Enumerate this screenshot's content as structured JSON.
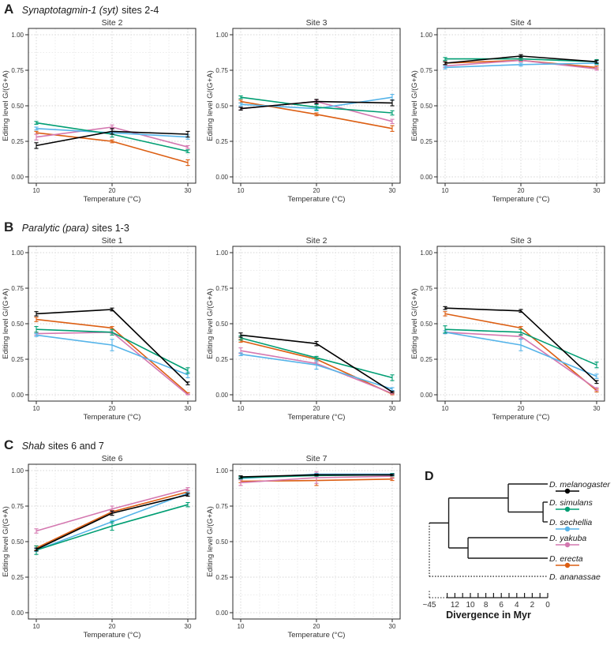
{
  "page": {
    "background": "#ffffff"
  },
  "palette": {
    "melanogaster": "#000000",
    "simulans": "#009E73",
    "sechellia": "#56B4E9",
    "yakuba": "#D478B0",
    "erecta": "#DC5E12",
    "grid_major": "#d4d4d4",
    "grid_minor": "#ebebeb",
    "panel_border": "#2b2b2b",
    "text": "#333333"
  },
  "sections": [
    {
      "label": "A",
      "gene_italic": "Synaptotagmin-1 (syt)",
      "suffix": "sites 2-4"
    },
    {
      "label": "B",
      "gene_italic": "Paralytic (para)",
      "suffix": "sites 1-3"
    },
    {
      "label": "C",
      "gene_italic": "Shab",
      "suffix": "sites 6 and 7"
    }
  ],
  "chart_defaults": {
    "type": "line",
    "x": [
      10,
      20,
      30
    ],
    "xtick_labels": [
      "10",
      "20",
      "30"
    ],
    "xlabel": "Temperature (°C)",
    "ylabel": "Editing level G/(G+A)",
    "ylim": [
      0,
      1
    ],
    "ytick_values": [
      0,
      0.25,
      0.5,
      0.75,
      1
    ],
    "ytick_labels": [
      "0.00",
      "0.25",
      "0.50",
      "0.75",
      "1.00"
    ],
    "grid": "dotted"
  },
  "chart_data": [
    {
      "type": "line",
      "section": "A",
      "title": "Site 2",
      "series": [
        {
          "name": "D. melanogaster",
          "color": "#000000",
          "values": [
            0.22,
            0.32,
            0.3
          ],
          "err": [
            0.02,
            0.02,
            0.02
          ]
        },
        {
          "name": "D. simulans",
          "color": "#009E73",
          "values": [
            0.38,
            0.3,
            0.18
          ],
          "err": [
            0.01,
            0.02,
            0.01
          ]
        },
        {
          "name": "D. sechellia",
          "color": "#56B4E9",
          "values": [
            0.34,
            0.31,
            0.28
          ],
          "err": [
            0.01,
            0.01,
            0.015
          ]
        },
        {
          "name": "D. yakuba",
          "color": "#D478B0",
          "values": [
            0.28,
            0.35,
            0.21
          ],
          "err": [
            0.02,
            0.015,
            0.01
          ]
        },
        {
          "name": "D. erecta",
          "color": "#DC5E12",
          "values": [
            0.31,
            0.25,
            0.1
          ],
          "err": [
            0.01,
            0.01,
            0.02
          ]
        }
      ]
    },
    {
      "type": "line",
      "section": "A",
      "title": "Site 3",
      "series": [
        {
          "name": "D. melanogaster",
          "color": "#000000",
          "values": [
            0.48,
            0.53,
            0.52
          ],
          "err": [
            0.01,
            0.015,
            0.02
          ]
        },
        {
          "name": "D. simulans",
          "color": "#009E73",
          "values": [
            0.56,
            0.49,
            0.45
          ],
          "err": [
            0.01,
            0.02,
            0.015
          ]
        },
        {
          "name": "D. sechellia",
          "color": "#56B4E9",
          "values": [
            0.51,
            0.48,
            0.56
          ],
          "err": [
            0.01,
            0.015,
            0.02
          ]
        },
        {
          "name": "D. yakuba",
          "color": "#D478B0",
          "values": [
            0.48,
            0.53,
            0.39
          ],
          "err": [
            0.01,
            0.01,
            0.015
          ]
        },
        {
          "name": "D. erecta",
          "color": "#DC5E12",
          "values": [
            0.53,
            0.44,
            0.34
          ],
          "err": [
            0.01,
            0.01,
            0.02
          ]
        }
      ]
    },
    {
      "type": "line",
      "section": "A",
      "title": "Site 4",
      "series": [
        {
          "name": "D. melanogaster",
          "color": "#000000",
          "values": [
            0.8,
            0.85,
            0.81
          ],
          "err": [
            0.01,
            0.01,
            0.01
          ]
        },
        {
          "name": "D. simulans",
          "color": "#009E73",
          "values": [
            0.83,
            0.83,
            0.81
          ],
          "err": [
            0.01,
            0.01,
            0.015
          ]
        },
        {
          "name": "D. sechellia",
          "color": "#56B4E9",
          "values": [
            0.77,
            0.79,
            0.8
          ],
          "err": [
            0.01,
            0.01,
            0.01
          ]
        },
        {
          "name": "D. yakuba",
          "color": "#D478B0",
          "values": [
            0.78,
            0.82,
            0.76
          ],
          "err": [
            0.01,
            0.01,
            0.01
          ]
        },
        {
          "name": "D. erecta",
          "color": "#DC5E12",
          "values": [
            0.8,
            0.82,
            0.77
          ],
          "err": [
            0.01,
            0.01,
            0.01
          ]
        }
      ]
    },
    {
      "type": "line",
      "section": "B",
      "title": "Site 1",
      "series": [
        {
          "name": "D. melanogaster",
          "color": "#000000",
          "values": [
            0.57,
            0.6,
            0.08
          ],
          "err": [
            0.015,
            0.01,
            0.01
          ]
        },
        {
          "name": "D. simulans",
          "color": "#009E73",
          "values": [
            0.46,
            0.44,
            0.17
          ],
          "err": [
            0.02,
            0.02,
            0.02
          ]
        },
        {
          "name": "D. sechellia",
          "color": "#56B4E9",
          "values": [
            0.42,
            0.35,
            0.14
          ],
          "err": [
            0.01,
            0.04,
            0.02
          ]
        },
        {
          "name": "D. yakuba",
          "color": "#D478B0",
          "values": [
            0.43,
            0.44,
            0.0
          ],
          "err": [
            0.01,
            0.01,
            0.005
          ]
        },
        {
          "name": "D. erecta",
          "color": "#DC5E12",
          "values": [
            0.53,
            0.47,
            0.01
          ],
          "err": [
            0.015,
            0.01,
            0.005
          ]
        }
      ]
    },
    {
      "type": "line",
      "section": "B",
      "title": "Site 2",
      "series": [
        {
          "name": "D. melanogaster",
          "color": "#000000",
          "values": [
            0.42,
            0.36,
            0.02
          ],
          "err": [
            0.015,
            0.015,
            0.005
          ]
        },
        {
          "name": "D. simulans",
          "color": "#009E73",
          "values": [
            0.4,
            0.26,
            0.12
          ],
          "err": [
            0.015,
            0.01,
            0.02
          ]
        },
        {
          "name": "D. sechellia",
          "color": "#56B4E9",
          "values": [
            0.285,
            0.21,
            0.04
          ],
          "err": [
            0.01,
            0.03,
            0.01
          ]
        },
        {
          "name": "D. yakuba",
          "color": "#D478B0",
          "values": [
            0.31,
            0.22,
            0.01
          ],
          "err": [
            0.02,
            0.01,
            0.005
          ]
        },
        {
          "name": "D. erecta",
          "color": "#DC5E12",
          "values": [
            0.38,
            0.25,
            0.005
          ],
          "err": [
            0.01,
            0.01,
            0.005
          ]
        }
      ]
    },
    {
      "type": "line",
      "section": "B",
      "title": "Site 3",
      "series": [
        {
          "name": "D. melanogaster",
          "color": "#000000",
          "values": [
            0.61,
            0.59,
            0.09
          ],
          "err": [
            0.01,
            0.01,
            0.01
          ]
        },
        {
          "name": "D. simulans",
          "color": "#009E73",
          "values": [
            0.46,
            0.44,
            0.21
          ],
          "err": [
            0.025,
            0.02,
            0.02
          ]
        },
        {
          "name": "D. sechellia",
          "color": "#56B4E9",
          "values": [
            0.44,
            0.35,
            0.13
          ],
          "err": [
            0.01,
            0.04,
            0.015
          ]
        },
        {
          "name": "D. yakuba",
          "color": "#D478B0",
          "values": [
            0.44,
            0.41,
            0.04
          ],
          "err": [
            0.01,
            0.015,
            0.01
          ]
        },
        {
          "name": "D. erecta",
          "color": "#DC5E12",
          "values": [
            0.57,
            0.47,
            0.03
          ],
          "err": [
            0.015,
            0.01,
            0.01
          ]
        }
      ]
    },
    {
      "type": "line",
      "section": "C",
      "title": "Site 6",
      "series": [
        {
          "name": "D. melanogaster",
          "color": "#000000",
          "values": [
            0.445,
            0.7,
            0.83
          ],
          "err": [
            0.01,
            0.015,
            0.01
          ]
        },
        {
          "name": "D. simulans",
          "color": "#009E73",
          "values": [
            0.44,
            0.61,
            0.76
          ],
          "err": [
            0.03,
            0.03,
            0.015
          ]
        },
        {
          "name": "D. sechellia",
          "color": "#56B4E9",
          "values": [
            0.44,
            0.64,
            0.84
          ],
          "err": [
            0.01,
            0.01,
            0.01
          ]
        },
        {
          "name": "D. yakuba",
          "color": "#D478B0",
          "values": [
            0.575,
            0.73,
            0.87
          ],
          "err": [
            0.015,
            0.02,
            0.01
          ]
        },
        {
          "name": "D. erecta",
          "color": "#DC5E12",
          "values": [
            0.455,
            0.71,
            0.85
          ],
          "err": [
            0.015,
            0.01,
            0.01
          ]
        }
      ]
    },
    {
      "type": "line",
      "section": "C",
      "title": "Site 7",
      "series": [
        {
          "name": "D. melanogaster",
          "color": "#000000",
          "values": [
            0.955,
            0.97,
            0.97
          ],
          "err": [
            0.008,
            0.005,
            0.005
          ]
        },
        {
          "name": "D. simulans",
          "color": "#009E73",
          "values": [
            0.95,
            0.965,
            0.97
          ],
          "err": [
            0.008,
            0.005,
            0.008
          ]
        },
        {
          "name": "D. sechellia",
          "color": "#56B4E9",
          "values": [
            0.945,
            0.975,
            0.975
          ],
          "err": [
            0.005,
            0.005,
            0.005
          ]
        },
        {
          "name": "D. yakuba",
          "color": "#D478B0",
          "values": [
            0.915,
            0.95,
            0.96
          ],
          "err": [
            0.02,
            0.04,
            0.015
          ]
        },
        {
          "name": "D. erecta",
          "color": "#DC5E12",
          "values": [
            0.925,
            0.93,
            0.94
          ],
          "err": [
            0.01,
            0.035,
            0.01
          ]
        }
      ]
    }
  ],
  "phylo": {
    "panel_label": "D",
    "species": [
      {
        "name": "D. melanogaster",
        "color": "#000000",
        "marker": true,
        "dotted": false
      },
      {
        "name": "D. simulans",
        "color": "#009E73",
        "marker": true,
        "dotted": false
      },
      {
        "name": "D. sechellia",
        "color": "#56B4E9",
        "marker": true,
        "dotted": false
      },
      {
        "name": "D. yakuba",
        "color": "#D478B0",
        "marker": true,
        "dotted": false
      },
      {
        "name": "D. erecta",
        "color": "#DC5E12",
        "marker": true,
        "dotted": false
      },
      {
        "name": "D. ananassae",
        "color": "#000000",
        "marker": false,
        "dotted": true
      }
    ],
    "divergence_myr": {
      "sim_sech": 0.6,
      "mel_vs_simsech": 5.1,
      "yak_ere": 10.3,
      "melgroup_vs_yakere": 12.8
    },
    "axis": {
      "title": "Divergence in Myr",
      "label_values": [
        12,
        10,
        8,
        6,
        4,
        2,
        0
      ],
      "labels": [
        "12",
        "10",
        "8",
        "6",
        "4",
        "2",
        "0"
      ],
      "solid_max_myr": 13,
      "origin_label": "~45"
    }
  }
}
